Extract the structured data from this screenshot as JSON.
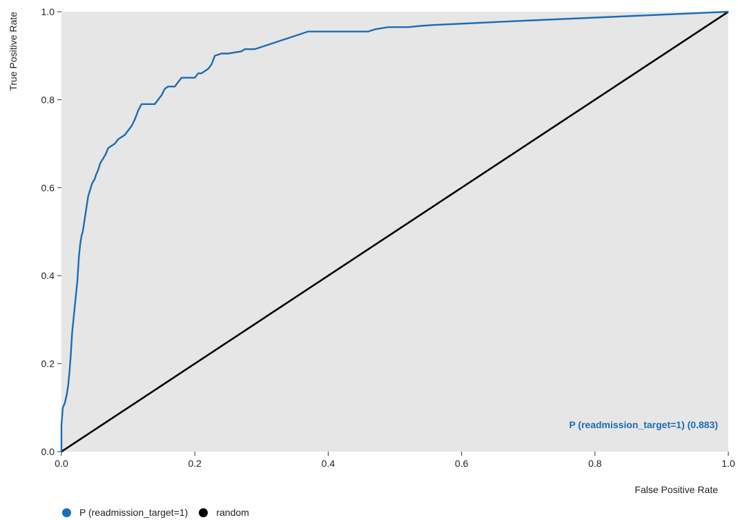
{
  "chart_data": {
    "type": "line",
    "title": "",
    "xlabel": "False Positive Rate",
    "ylabel": "True Positive Rate",
    "xlim": [
      0,
      1
    ],
    "ylim": [
      0,
      1
    ],
    "x_ticks": [
      "0.0",
      "0.2",
      "0.4",
      "0.6",
      "0.8",
      "1.0"
    ],
    "y_ticks": [
      "0.0",
      "0.2",
      "0.4",
      "0.6",
      "0.8",
      "1.0"
    ],
    "grid": false,
    "background": "#e6e6e6",
    "legend_position": "bottom-left",
    "annotation": "P (readmission_target=1) (0.883)",
    "series": [
      {
        "name": "P (readmission_target=1)",
        "color": "#1a6cb3",
        "x": [
          0,
          0,
          0.002,
          0.005,
          0.008,
          0.01,
          0.012,
          0.014,
          0.016,
          0.018,
          0.02,
          0.022,
          0.024,
          0.026,
          0.028,
          0.03,
          0.032,
          0.034,
          0.036,
          0.038,
          0.04,
          0.042,
          0.044,
          0.046,
          0.048,
          0.05,
          0.052,
          0.055,
          0.058,
          0.062,
          0.066,
          0.07,
          0.075,
          0.08,
          0.085,
          0.09,
          0.095,
          0.1,
          0.105,
          0.11,
          0.115,
          0.12,
          0.13,
          0.14,
          0.145,
          0.15,
          0.155,
          0.16,
          0.17,
          0.18,
          0.19,
          0.195,
          0.2,
          0.205,
          0.21,
          0.22,
          0.225,
          0.23,
          0.24,
          0.25,
          0.27,
          0.275,
          0.28,
          0.29,
          0.3,
          0.31,
          0.32,
          0.33,
          0.34,
          0.35,
          0.36,
          0.37,
          0.38,
          0.39,
          0.4,
          0.41,
          0.42,
          0.43,
          0.44,
          0.45,
          0.46,
          0.47,
          0.49,
          0.52,
          0.54,
          0.56,
          0.7,
          0.85,
          1.0
        ],
        "y": [
          0,
          0.06,
          0.1,
          0.11,
          0.13,
          0.15,
          0.18,
          0.22,
          0.27,
          0.3,
          0.33,
          0.36,
          0.39,
          0.44,
          0.47,
          0.49,
          0.5,
          0.52,
          0.54,
          0.56,
          0.58,
          0.59,
          0.6,
          0.61,
          0.615,
          0.62,
          0.63,
          0.64,
          0.655,
          0.665,
          0.675,
          0.69,
          0.695,
          0.7,
          0.71,
          0.715,
          0.72,
          0.73,
          0.74,
          0.755,
          0.775,
          0.79,
          0.79,
          0.79,
          0.8,
          0.81,
          0.825,
          0.83,
          0.83,
          0.85,
          0.85,
          0.85,
          0.85,
          0.86,
          0.86,
          0.87,
          0.88,
          0.9,
          0.905,
          0.905,
          0.91,
          0.915,
          0.915,
          0.915,
          0.92,
          0.925,
          0.93,
          0.935,
          0.94,
          0.945,
          0.95,
          0.955,
          0.955,
          0.955,
          0.955,
          0.955,
          0.955,
          0.955,
          0.955,
          0.955,
          0.955,
          0.96,
          0.965,
          0.965,
          0.968,
          0.97,
          0.98,
          0.99,
          1.0
        ]
      },
      {
        "name": "random",
        "color": "#000000",
        "x": [
          0,
          1
        ],
        "y": [
          0,
          1
        ]
      }
    ]
  }
}
